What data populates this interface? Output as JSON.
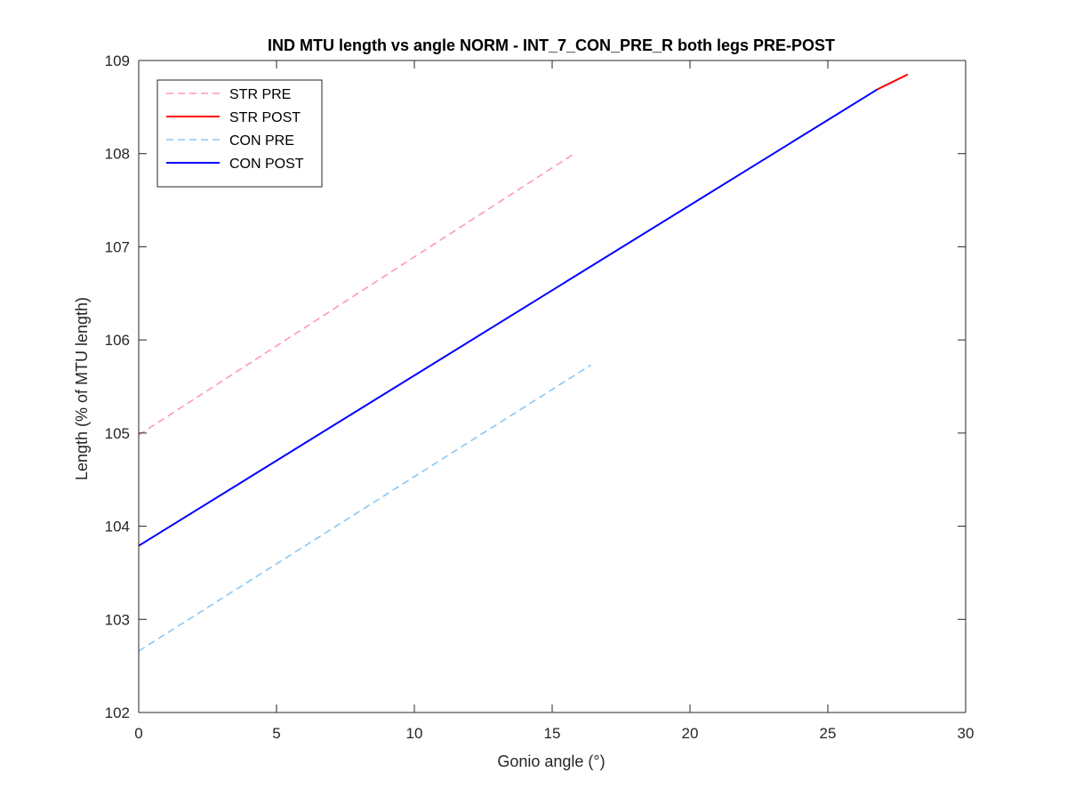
{
  "chart_data": {
    "type": "line",
    "title": "IND MTU length vs angle NORM - INT_7_CON_PRE_R both legs PRE-POST",
    "xlabel": "Gonio angle (°)",
    "ylabel": "Length (% of MTU length)",
    "xlim": [
      0,
      30
    ],
    "ylim": [
      102,
      109
    ],
    "xticks": [
      0,
      5,
      10,
      15,
      20,
      25,
      30
    ],
    "yticks": [
      102,
      103,
      104,
      105,
      106,
      107,
      108,
      109
    ],
    "grid": false,
    "legend_position": "top-left",
    "series": [
      {
        "name": "STR PRE",
        "color": "#ff99b3",
        "dashed": true,
        "x": [
          0,
          15.8
        ],
        "y": [
          104.98,
          108.0
        ]
      },
      {
        "name": "STR POST",
        "color": "#ff0000",
        "dashed": false,
        "x": [
          26.8,
          27.9
        ],
        "y": [
          108.69,
          108.85
        ]
      },
      {
        "name": "CON PRE",
        "color": "#88c8f4",
        "dashed": true,
        "x": [
          0,
          16.4
        ],
        "y": [
          102.66,
          105.73
        ]
      },
      {
        "name": "CON POST",
        "color": "#0000ff",
        "dashed": false,
        "x": [
          0,
          26.8
        ],
        "y": [
          103.79,
          108.69
        ]
      }
    ]
  }
}
